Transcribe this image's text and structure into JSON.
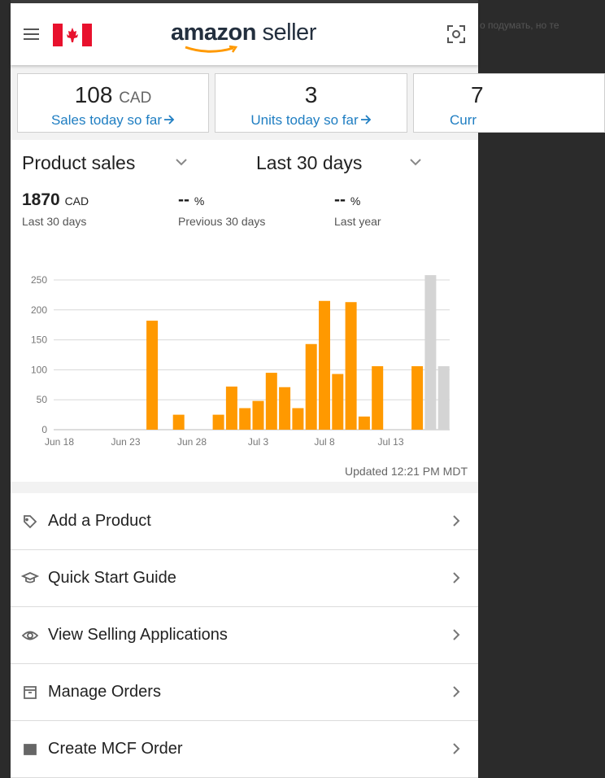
{
  "background_text": "о подумать, но те",
  "header": {
    "logo_text": "amazon",
    "logo_suffix": "seller"
  },
  "cards": [
    {
      "value": 108,
      "unit": "CAD",
      "label": "Sales today so far"
    },
    {
      "value": 3,
      "label": "Units today so far"
    },
    {
      "value": 7,
      "label": "Curr"
    }
  ],
  "product_sales": {
    "metric": "Product sales",
    "period": "Last 30 days",
    "stats": [
      {
        "value": "1870",
        "unit": "CAD",
        "label": "Last 30 days"
      },
      {
        "value": "--",
        "unit": "%",
        "label": "Previous 30 days"
      },
      {
        "value": "--",
        "unit": "%",
        "label": "Last year"
      }
    ],
    "chart": {
      "type": "bar",
      "categories": [
        "Jun 18",
        null,
        null,
        null,
        null,
        "Jun 23",
        null,
        null,
        null,
        null,
        "Jun 28",
        null,
        null,
        null,
        null,
        "Jul 3",
        null,
        null,
        null,
        null,
        "Jul 8",
        null,
        null,
        null,
        null,
        "Jul 13",
        null,
        null,
        null,
        null
      ],
      "values": [
        0,
        0,
        0,
        0,
        0,
        0,
        0,
        182,
        0,
        25,
        0,
        0,
        25,
        72,
        36,
        48,
        95,
        71,
        36,
        143,
        215,
        93,
        213,
        22,
        106,
        0,
        0,
        106,
        258,
        106
      ],
      "colors": [
        "#ff9900",
        "#ff9900",
        "#ff9900",
        "#ff9900",
        "#ff9900",
        "#ff9900",
        "#ff9900",
        "#ff9900",
        "#ff9900",
        "#ff9900",
        "#ff9900",
        "#ff9900",
        "#ff9900",
        "#ff9900",
        "#ff9900",
        "#ff9900",
        "#ff9900",
        "#ff9900",
        "#ff9900",
        "#ff9900",
        "#ff9900",
        "#ff9900",
        "#ff9900",
        "#ff9900",
        "#ff9900",
        "#ff9900",
        "#ff9900",
        "#ff9900",
        "#d4d4d4",
        "#d4d4d4"
      ],
      "ylim": [
        0,
        250
      ],
      "yticks": [
        0,
        50,
        100,
        150,
        200,
        250
      ],
      "grid": true
    },
    "updated": "Updated 12:21 PM MDT"
  },
  "menu": [
    "Add a Product",
    "Quick Start Guide",
    "View Selling Applications",
    "Manage Orders",
    "Create MCF Order"
  ]
}
